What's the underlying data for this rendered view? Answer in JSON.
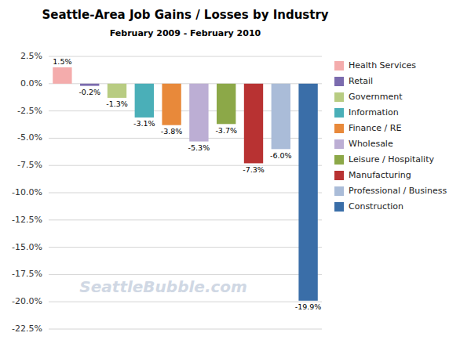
{
  "chart_data": {
    "type": "bar",
    "title": "Seattle-Area Job Gains / Losses by Industry",
    "subtitle": "February 2009 - February 2010",
    "categories": [
      "Health Services",
      "Retail",
      "Government",
      "Information",
      "Finance / RE",
      "Wholesale",
      "Leisure / Hospitality",
      "Manufacturing",
      "Professional / Business",
      "Construction"
    ],
    "values": [
      1.5,
      -0.2,
      -1.3,
      -3.1,
      -3.8,
      -5.3,
      -3.7,
      -7.3,
      -6.0,
      -19.9
    ],
    "value_labels": [
      "1.5%",
      "-0.2%",
      "-1.3%",
      "-3.1%",
      "-3.8%",
      "-5.3%",
      "-3.7%",
      "-7.3%",
      "-6.0%",
      "-19.9%"
    ],
    "colors": [
      "#F4ACAC",
      "#7B6BAE",
      "#B8CC82",
      "#4AAFB8",
      "#E8893A",
      "#BCAED4",
      "#8CA848",
      "#B83232",
      "#AABCD8",
      "#3A6EA8"
    ],
    "ylim": [
      -22.5,
      2.5
    ],
    "yticks": [
      {
        "value": 2.5,
        "label": "2.5%"
      },
      {
        "value": 0.0,
        "label": "0.0%"
      },
      {
        "value": -2.5,
        "label": "-2.5%"
      },
      {
        "value": -5.0,
        "label": "-5.0%"
      },
      {
        "value": -7.5,
        "label": "-7.5%"
      },
      {
        "value": -10.0,
        "label": "-10.0%"
      },
      {
        "value": -12.5,
        "label": "-12.5%"
      },
      {
        "value": -15.0,
        "label": "-15.0%"
      },
      {
        "value": -17.5,
        "label": "-17.5%"
      },
      {
        "value": -20.0,
        "label": "-20.0%"
      },
      {
        "value": -22.5,
        "label": "-22.5%"
      }
    ],
    "annotations": [
      "SeattleBubble.com"
    ],
    "grid": true,
    "legend": "right",
    "data_labels": true,
    "tick_labels": "y"
  }
}
